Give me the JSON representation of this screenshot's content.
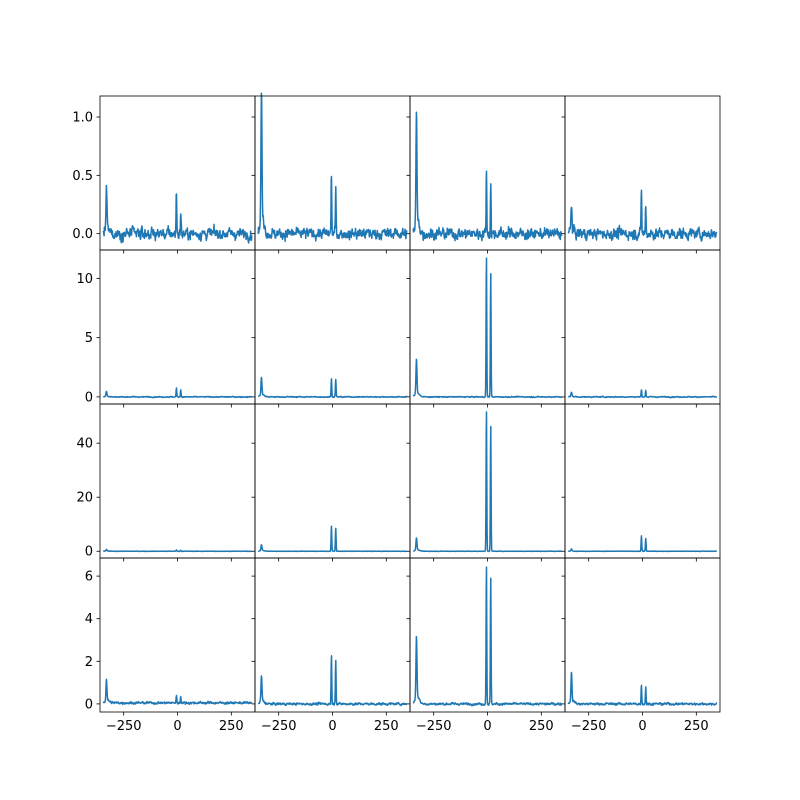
{
  "chart_data": {
    "type": "line",
    "layout": "4x4 grid, shared x axis, shared y axis per row",
    "line_color": "#1f77b4",
    "xlim": [
      -360,
      360
    ],
    "x_ticks": [
      -250,
      0,
      250
    ],
    "x_tick_labels": [
      "−250",
      "0",
      "250"
    ],
    "peak_x": {
      "left": -330,
      "center_a": -5,
      "center_b": 15
    },
    "rows": [
      {
        "ylim": [
          -0.14,
          1.18
        ],
        "y_ticks": [
          0.0,
          0.5,
          1.0
        ],
        "y_tick_labels": [
          "0.0",
          "0.5",
          "1.0"
        ],
        "panels": [
          {
            "noise": 0.035,
            "baseline": 0.0,
            "peaks": {
              "left": 0.35,
              "center_a": 0.38,
              "center_b": 0.18
            }
          },
          {
            "noise": 0.035,
            "baseline": 0.0,
            "peaks": {
              "left": 1.11,
              "center_a": 0.52,
              "center_b": 0.37
            }
          },
          {
            "noise": 0.035,
            "baseline": 0.0,
            "peaks": {
              "left": 0.92,
              "center_a": 0.55,
              "center_b": 0.42
            }
          },
          {
            "noise": 0.035,
            "baseline": 0.0,
            "peaks": {
              "left": 0.23,
              "center_a": 0.39,
              "center_b": 0.25
            }
          }
        ]
      },
      {
        "ylim": [
          -0.6,
          12.4
        ],
        "y_ticks": [
          0,
          5,
          10
        ],
        "y_tick_labels": [
          "0",
          "5",
          "10"
        ],
        "panels": [
          {
            "noise": 0.03,
            "baseline": 0.0,
            "peaks": {
              "left": 0.45,
              "center_a": 0.75,
              "center_b": 0.6
            }
          },
          {
            "noise": 0.03,
            "baseline": 0.0,
            "peaks": {
              "left": 1.5,
              "center_a": 1.6,
              "center_b": 1.5
            }
          },
          {
            "noise": 0.03,
            "baseline": 0.0,
            "peaks": {
              "left": 2.9,
              "center_a": 12.0,
              "center_b": 10.6
            }
          },
          {
            "noise": 0.03,
            "baseline": 0.0,
            "peaks": {
              "left": 0.35,
              "center_a": 0.6,
              "center_b": 0.55
            }
          }
        ]
      },
      {
        "ylim": [
          -2.5,
          54.5
        ],
        "y_ticks": [
          0,
          20,
          40
        ],
        "y_tick_labels": [
          "0",
          "20",
          "40"
        ],
        "panels": [
          {
            "noise": 0.05,
            "baseline": 0.0,
            "peaks": {
              "left": 0.6,
              "center_a": 0.5,
              "center_b": 0.4
            }
          },
          {
            "noise": 0.05,
            "baseline": 0.0,
            "peaks": {
              "left": 2.2,
              "center_a": 9.5,
              "center_b": 8.7
            }
          },
          {
            "noise": 0.05,
            "baseline": 0.0,
            "peaks": {
              "left": 4.5,
              "center_a": 52.8,
              "center_b": 47.0
            }
          },
          {
            "noise": 0.05,
            "baseline": 0.0,
            "peaks": {
              "left": 0.8,
              "center_a": 5.8,
              "center_b": 4.8
            }
          }
        ]
      },
      {
        "ylim": [
          -0.38,
          6.85
        ],
        "y_ticks": [
          0,
          2,
          4,
          6
        ],
        "y_tick_labels": [
          "0",
          "2",
          "4",
          "6"
        ],
        "panels": [
          {
            "noise": 0.04,
            "baseline": 0.05,
            "peaks": {
              "left": 1.0,
              "center_a": 0.35,
              "center_b": 0.33
            }
          },
          {
            "noise": 0.04,
            "baseline": 0.0,
            "peaks": {
              "left": 1.2,
              "center_a": 2.3,
              "center_b": 2.1
            }
          },
          {
            "noise": 0.04,
            "baseline": 0.0,
            "peaks": {
              "left": 2.9,
              "center_a": 6.6,
              "center_b": 6.0
            }
          },
          {
            "noise": 0.04,
            "baseline": 0.0,
            "peaks": {
              "left": 1.35,
              "center_a": 0.92,
              "center_b": 0.8
            }
          }
        ]
      }
    ]
  }
}
